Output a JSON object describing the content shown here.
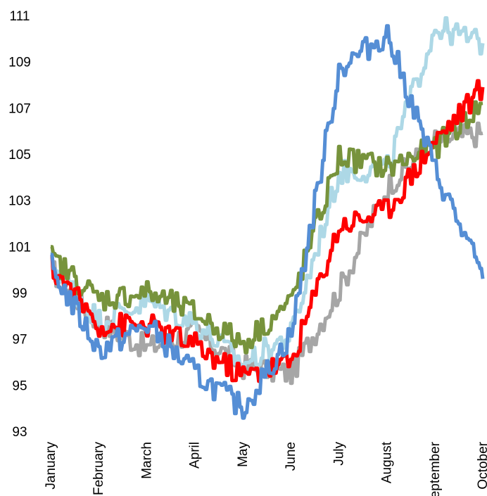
{
  "chart_data": {
    "type": "line",
    "title": "",
    "xlabel": "",
    "ylabel": "",
    "ylim": [
      93,
      111
    ],
    "yticks": [
      93,
      95,
      97,
      99,
      101,
      103,
      105,
      107,
      109,
      111
    ],
    "grid": false,
    "legend": "none",
    "x": [
      "January",
      "February",
      "March",
      "April",
      "May",
      "June",
      "July",
      "August",
      "September",
      "October"
    ],
    "series": [
      {
        "color": "#a6a6a6",
        "values": [
          100.0,
          97.7,
          96.6,
          97.3,
          95.8,
          95.5,
          99.1,
          103.6,
          105.6,
          105.9
        ]
      },
      {
        "color": "#add8e6",
        "values": [
          100.3,
          97.8,
          98.6,
          97.7,
          95.9,
          97.2,
          104.2,
          104.4,
          110.5,
          109.8
        ]
      },
      {
        "color": "#77933c",
        "values": [
          100.5,
          98.7,
          99.0,
          98.1,
          96.8,
          98.6,
          104.9,
          104.4,
          105.3,
          107.2
        ]
      },
      {
        "color": "#ff0000",
        "values": [
          100.1,
          97.6,
          97.6,
          96.7,
          95.4,
          96.0,
          101.9,
          102.6,
          105.6,
          107.9
        ]
      },
      {
        "color": "#558ed5",
        "values": [
          100.1,
          96.5,
          97.6,
          95.5,
          94.0,
          97.2,
          108.7,
          110.2,
          104.3,
          99.6
        ]
      }
    ]
  }
}
